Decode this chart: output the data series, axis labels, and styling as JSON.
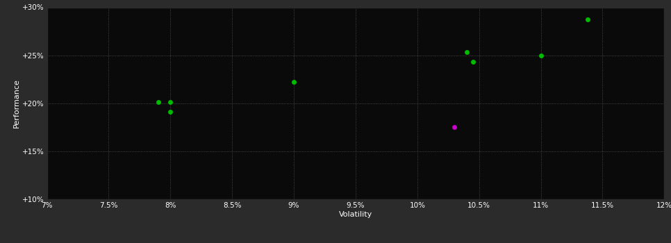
{
  "background_color": "#2b2b2b",
  "plot_bg_color": "#0a0a0a",
  "grid_color": "#555555",
  "text_color": "#ffffff",
  "xlabel": "Volatility",
  "ylabel": "Performance",
  "xlim": [
    0.07,
    0.12
  ],
  "ylim": [
    0.1,
    0.3
  ],
  "xticks": [
    0.07,
    0.075,
    0.08,
    0.085,
    0.09,
    0.095,
    0.1,
    0.105,
    0.11,
    0.115,
    0.12
  ],
  "yticks": [
    0.1,
    0.15,
    0.2,
    0.25,
    0.3
  ],
  "green_points": [
    [
      0.079,
      0.2015
    ],
    [
      0.08,
      0.2015
    ],
    [
      0.08,
      0.191
    ],
    [
      0.09,
      0.222
    ],
    [
      0.104,
      0.253
    ],
    [
      0.1045,
      0.243
    ],
    [
      0.11,
      0.2495
    ],
    [
      0.1138,
      0.287
    ]
  ],
  "magenta_points": [
    [
      0.103,
      0.1755
    ]
  ],
  "green_color": "#00bb00",
  "magenta_color": "#cc00cc",
  "marker_size": 5
}
